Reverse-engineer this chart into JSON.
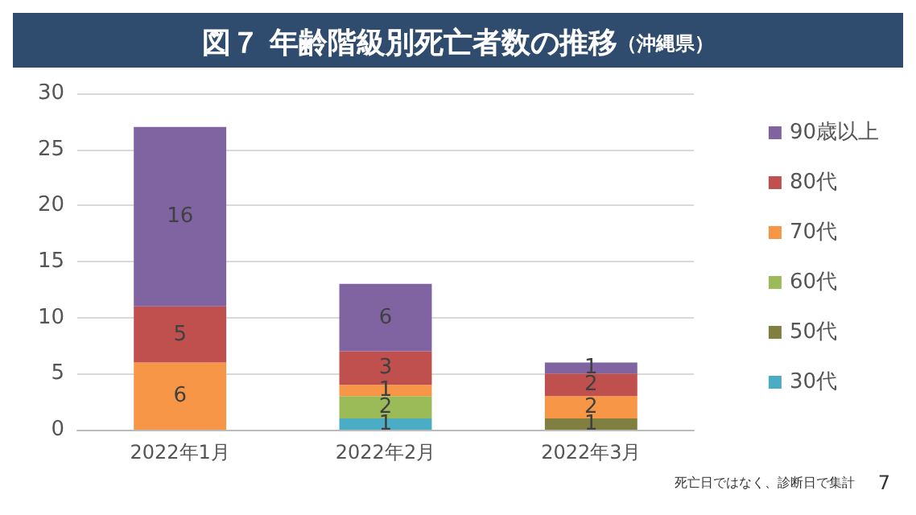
{
  "chart_data": {
    "type": "bar",
    "title": "図７ 年齢階級別死亡者数の推移",
    "subtitle": "（沖縄県）",
    "categories": [
      "2022年1月",
      "2022年2月",
      "2022年3月"
    ],
    "stacked": true,
    "data_labels": true,
    "grid": "y",
    "legend": "right",
    "ylim": [
      0,
      30
    ],
    "yticks": [
      0,
      5,
      10,
      15,
      20,
      25,
      30
    ],
    "series": [
      {
        "name": "30代",
        "color": "#4bacc6",
        "values": [
          null,
          1,
          null
        ]
      },
      {
        "name": "50代",
        "color": "#7f7f3f",
        "values": [
          null,
          null,
          1
        ]
      },
      {
        "name": "60代",
        "color": "#9bbb59",
        "values": [
          null,
          2,
          null
        ]
      },
      {
        "name": "70代",
        "color": "#f79646",
        "values": [
          6,
          1,
          2
        ]
      },
      {
        "name": "80代",
        "color": "#c0504d",
        "values": [
          5,
          3,
          2
        ]
      },
      {
        "name": "90歳以上",
        "color": "#8064a2",
        "values": [
          16,
          6,
          1
        ]
      }
    ],
    "annotations": [
      "死亡日ではなく、診断日で集計",
      "7"
    ]
  }
}
